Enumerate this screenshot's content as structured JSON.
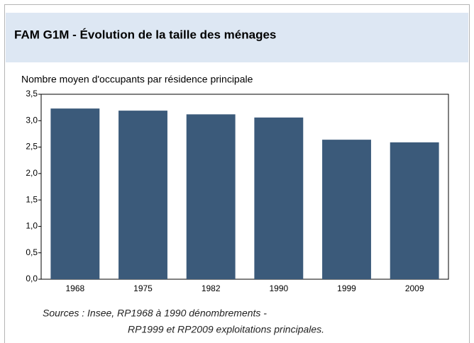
{
  "chart_data": {
    "type": "bar",
    "title": "FAM G1M - Évolution de la taille des ménages",
    "subtitle": "Nombre moyen d'occupants par résidence principale",
    "categories": [
      "1968",
      "1975",
      "1982",
      "1990",
      "1999",
      "2009"
    ],
    "values": [
      3.23,
      3.19,
      3.12,
      3.06,
      2.64,
      2.59
    ],
    "color": "#3b5a7a",
    "ylim": [
      0,
      3.5
    ],
    "yticks": [
      {
        "value": 0,
        "label": "0,0"
      },
      {
        "value": 0.5,
        "label": "0,5"
      },
      {
        "value": 1,
        "label": "1,0"
      },
      {
        "value": 1.5,
        "label": "1,5"
      },
      {
        "value": 2,
        "label": "2,0"
      },
      {
        "value": 2.5,
        "label": "2,5"
      },
      {
        "value": 3,
        "label": "3,0"
      },
      {
        "value": 3.5,
        "label": "3,5"
      }
    ],
    "grid": false,
    "sources": [
      "Sources : Insee, RP1968 à 1990 dénombrements -",
      "RP1999 et RP2009 exploitations principales."
    ]
  }
}
